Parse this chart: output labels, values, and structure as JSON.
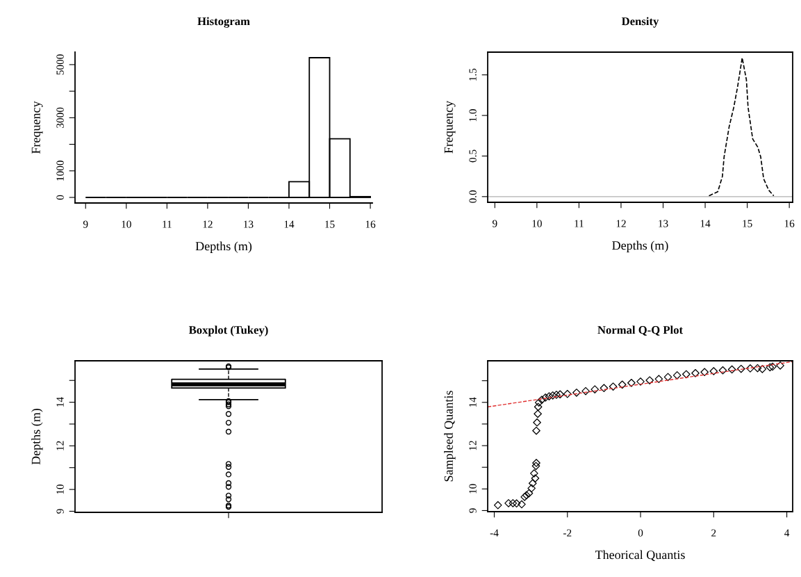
{
  "chart_data": [
    {
      "type": "histogram",
      "title": "Histogram",
      "xlabel": "Depths (m)",
      "ylabel": "Frequency",
      "bins": [
        9,
        9.5,
        10,
        10.5,
        11,
        11.5,
        12,
        12.5,
        13,
        13.5,
        14,
        14.5,
        15,
        15.5,
        16
      ],
      "values": [
        0,
        0,
        0,
        0,
        0,
        0,
        0,
        0,
        0,
        0,
        590,
        5260,
        2210,
        30
      ],
      "color": "#000000",
      "xlim": [
        8.74,
        16.05
      ],
      "ylim": [
        -210,
        5470
      ],
      "xticks": [
        9,
        10,
        11,
        12,
        13,
        14,
        15,
        16
      ],
      "yticks": [
        0,
        1000,
        {
          "value": 2000,
          "label": null
        },
        3000,
        {
          "value": 4000,
          "label": null
        },
        5000
      ]
    },
    {
      "type": "line",
      "title": "Density",
      "xlabel": "Depths (m)",
      "ylabel": "Frequency",
      "line_style": "dashed",
      "x": [
        14.09,
        14.3,
        14.41,
        14.45,
        14.57,
        14.68,
        14.77,
        14.88,
        14.98,
        15.02,
        15.13,
        15.25,
        15.32,
        15.39,
        15.51,
        15.63
      ],
      "values": [
        0.01,
        0.06,
        0.25,
        0.49,
        0.86,
        1.1,
        1.35,
        1.71,
        1.44,
        1.1,
        0.71,
        0.61,
        0.49,
        0.22,
        0.08,
        0.01
      ],
      "color": "#000000",
      "ref_lines": [
        {
          "axis": "y",
          "value": 0,
          "color": "#b0b0b0"
        }
      ],
      "xlim": [
        8.83,
        16.08
      ],
      "ylim": [
        -0.07,
        1.78
      ],
      "xticks": [
        9,
        10,
        11,
        12,
        13,
        14,
        15,
        16
      ],
      "yticks": [
        {
          "value": 0,
          "label": "0.0"
        },
        {
          "value": 0.5,
          "label": "0.5"
        },
        {
          "value": 1,
          "label": "1.0"
        },
        {
          "value": 1.5,
          "label": "1.5"
        }
      ]
    },
    {
      "type": "box",
      "title": "Boxplot (Tukey)",
      "ylabel": "Depths (m)",
      "categories": [
        null
      ],
      "boxes": [
        {
          "low": 14.12,
          "q1": 14.65,
          "median": 14.82,
          "q3": 15.05,
          "high": 15.52,
          "outliers": [
            15.6,
            15.65,
            14.05,
            14.0,
            13.9,
            13.82,
            13.46,
            13.06,
            12.65,
            11.17,
            11.03,
            10.69,
            10.29,
            10.12,
            9.72,
            9.55,
            9.26,
            9.2
          ]
        }
      ],
      "color": "#000000",
      "ylim": [
        8.95,
        15.9
      ],
      "yticks": [
        9,
        10,
        {
          "value": 11,
          "label": null
        },
        12,
        {
          "value": 13,
          "label": null
        },
        14,
        {
          "value": 15,
          "label": null
        }
      ]
    },
    {
      "type": "scatter",
      "title": "Normal Q-Q Plot",
      "xlabel": "Theorical Quantis",
      "ylabel": "Sampleed Quantis",
      "series": [
        {
          "type": "scatter",
          "marker": "diamond",
          "color": "#000000",
          "x": [
            -3.9,
            -3.61,
            -3.49,
            -3.39,
            -3.25,
            -3.17,
            -3.12,
            -3.05,
            -2.98,
            -2.95,
            -2.91,
            -2.88,
            -2.86,
            -2.85,
            -2.85,
            -2.83,
            -2.81,
            -2.8,
            -2.78,
            -2.7,
            -2.6,
            -2.5,
            -2.4,
            -2.3,
            -2.2,
            -2.0,
            -1.75,
            -1.5,
            -1.25,
            -1.0,
            -0.75,
            -0.5,
            -0.25,
            0,
            0.25,
            0.5,
            0.75,
            1.0,
            1.25,
            1.5,
            1.75,
            2.0,
            2.25,
            2.5,
            2.75,
            3.0,
            3.2,
            3.33,
            3.54,
            3.61,
            3.82
          ],
          "values": [
            9.25,
            9.34,
            9.34,
            9.33,
            9.29,
            9.63,
            9.71,
            9.8,
            10.03,
            10.26,
            10.72,
            10.49,
            11.06,
            11.2,
            12.69,
            13.07,
            13.47,
            13.79,
            13.99,
            14.12,
            14.22,
            14.28,
            14.32,
            14.35,
            14.37,
            14.39,
            14.45,
            14.52,
            14.6,
            14.66,
            14.73,
            14.82,
            14.9,
            14.96,
            15.02,
            15.08,
            15.17,
            15.25,
            15.3,
            15.35,
            15.4,
            15.44,
            15.48,
            15.52,
            15.55,
            15.57,
            15.58,
            15.54,
            15.62,
            15.65,
            15.7
          ]
        },
        {
          "type": "line",
          "color": "#e03030",
          "line_style": "dashed",
          "x": [
            -4.18,
            4.16
          ],
          "values": [
            13.79,
            15.88
          ]
        }
      ],
      "xlim": [
        -4.18,
        4.16
      ],
      "ylim": [
        8.95,
        15.92
      ],
      "xticks": [
        -4,
        -2,
        0,
        2,
        4
      ],
      "yticks": [
        9,
        10,
        {
          "value": 11,
          "label": null
        },
        12,
        {
          "value": 13,
          "label": null
        },
        14,
        {
          "value": 15,
          "label": null
        }
      ]
    }
  ]
}
